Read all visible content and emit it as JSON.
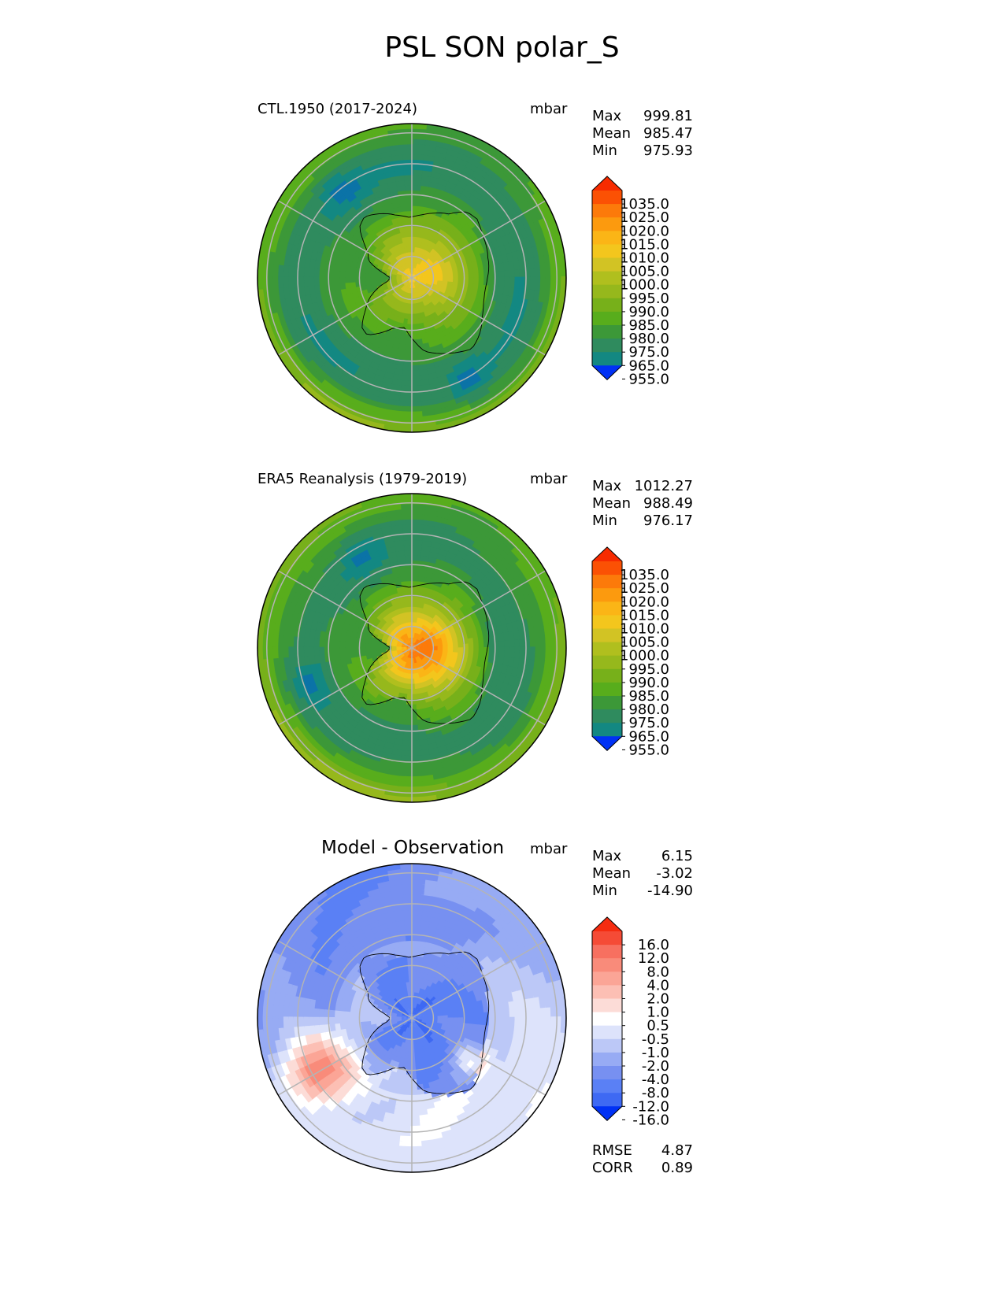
{
  "figure": {
    "title": "PSL SON polar_S"
  },
  "colors": {
    "abs": [
      "#0031f5",
      "#0a55d8",
      "#0b73a7",
      "#138882",
      "#2f8b5e",
      "#3c9838",
      "#58ad1c",
      "#77b01a",
      "#96b81c",
      "#b0bf1e",
      "#d2c324",
      "#f3c61d",
      "#fbb516",
      "#fc9a0e",
      "#fc7a0a",
      "#fb5104",
      "#f72b00"
    ],
    "diff": [
      "#0031f5",
      "#1e4ff3",
      "#3e69f3",
      "#5a80f5",
      "#7790f1",
      "#97abf4",
      "#bcc8f7",
      "#dde3fb",
      "#ffffff",
      "#fcdcd7",
      "#fcbfb4",
      "#fba596",
      "#f98b7a",
      "#f77060",
      "#f54b36",
      "#f52c10"
    ]
  },
  "chart_data": [
    {
      "type": "heatmap",
      "title": "CTL.1950 (2017-2024)",
      "units": "mbar",
      "stats": {
        "max_label": "Max",
        "max": "999.81",
        "mean_label": "Mean",
        "mean": "985.47",
        "min_label": "Min",
        "min": "975.93"
      },
      "colorbar": {
        "ticks": [
          "1035.0",
          "1025.0",
          "1020.0",
          "1015.0",
          "1010.0",
          "1005.0",
          "1000.0",
          "995.0",
          "990.0",
          "985.0",
          "980.0",
          "975.0",
          "965.0",
          "955.0"
        ],
        "palette": "abs"
      },
      "field": {
        "base": 5.5,
        "cont": 4.6,
        "contR": 0.1,
        "ctheta": 30,
        "lowR": 0.72,
        "lowAmp": -1.8,
        "lowW": 0.2,
        "outerAmp": 2.6,
        "ring": [
          [
            0,
            130,
            0.73,
            0.14,
            1.8
          ],
          [
            0,
            300,
            0.75,
            0.14,
            1.6
          ]
        ]
      }
    },
    {
      "type": "heatmap",
      "title": "ERA5 Reanalysis (1979-2019)",
      "units": "mbar",
      "stats": {
        "max_label": "Max",
        "max": "1012.27",
        "mean_label": "Mean",
        "mean": "988.49",
        "min_label": "Min",
        "min": "976.17"
      },
      "colorbar": {
        "ticks": [
          "1035.0",
          "1025.0",
          "1020.0",
          "1015.0",
          "1010.0",
          "1005.0",
          "1000.0",
          "995.0",
          "990.0",
          "985.0",
          "980.0",
          "975.0",
          "965.0",
          "955.0"
        ],
        "palette": "abs"
      },
      "field": {
        "base": 5.6,
        "cont": 7.4,
        "contR": 0.07,
        "ctheta": 345,
        "lowR": 0.66,
        "lowAmp": -1.6,
        "lowW": 0.2,
        "outerAmp": 2.9,
        "ring": [
          [
            0,
            200,
            0.7,
            0.14,
            1.6
          ],
          [
            0,
            120,
            0.68,
            0.14,
            1.4
          ]
        ]
      }
    },
    {
      "type": "heatmap",
      "title": "Model - Observation",
      "units": "mbar",
      "stats": {
        "max_label": "Max",
        "max": "6.15",
        "mean_label": "Mean",
        "mean": "-3.02",
        "min_label": "Min",
        "min": "-14.90"
      },
      "colorbar": {
        "ticks": [
          "16.0",
          "12.0",
          "8.0",
          "4.0",
          "2.0",
          "1.0",
          "0.5",
          "-0.5",
          "-1.0",
          "-2.0",
          "-4.0",
          "-8.0",
          "-12.0",
          "-16.0"
        ],
        "palette": "diff"
      },
      "field": {
        "diff": true
      },
      "extra": {
        "rmse_label": "RMSE",
        "rmse": "4.87",
        "corr_label": "CORR",
        "corr": "0.89"
      }
    }
  ]
}
